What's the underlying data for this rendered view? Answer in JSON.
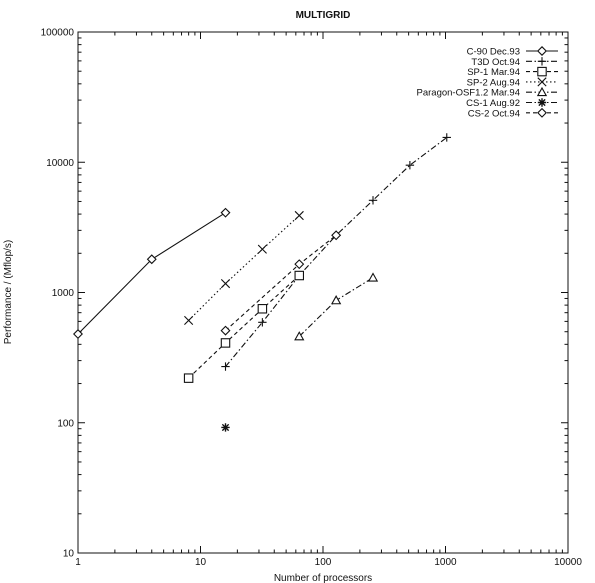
{
  "chart_data": {
    "type": "line",
    "title": "MULTIGRID",
    "xlabel": "Number of processors",
    "ylabel": "Performance / (Mflop/s)",
    "x_scale": "log",
    "y_scale": "log",
    "xlim": [
      1,
      10000
    ],
    "ylim": [
      10,
      100000
    ],
    "x_ticks": [
      "1",
      "10",
      "100",
      "1000",
      "10000"
    ],
    "y_ticks": [
      "10",
      "100",
      "1000",
      "10000",
      "100000"
    ],
    "grid": false,
    "legend_position": "top-right",
    "series": [
      {
        "name": "C-90 Dec.93",
        "marker": "diamond",
        "dash": "solid",
        "x": [
          1,
          4,
          16
        ],
        "y": [
          480,
          1800,
          4100
        ]
      },
      {
        "name": "T3D Oct.94",
        "marker": "plus",
        "dash": "dashdot",
        "x": [
          16,
          32,
          64,
          128,
          256,
          512,
          1024
        ],
        "y": [
          270,
          590,
          1350,
          2750,
          5100,
          9500,
          15500
        ]
      },
      {
        "name": "SP-1 Mar.94",
        "marker": "square",
        "dash": "dashed",
        "x": [
          8,
          16,
          32,
          64
        ],
        "y": [
          220,
          410,
          750,
          1350
        ]
      },
      {
        "name": "SP-2 Aug.94",
        "marker": "x",
        "dash": "dotted",
        "x": [
          8,
          16,
          32,
          64
        ],
        "y": [
          610,
          1170,
          2150,
          3900
        ]
      },
      {
        "name": "Paragon-OSF1.2 Mar.94",
        "marker": "triangle",
        "dash": "dashdot",
        "x": [
          64,
          128,
          256
        ],
        "y": [
          460,
          870,
          1300
        ]
      },
      {
        "name": "CS-1 Aug.92",
        "marker": "asterisk",
        "dash": "dashdot",
        "x": [
          16
        ],
        "y": [
          92
        ]
      },
      {
        "name": "CS-2 Oct.94",
        "marker": "diamond",
        "dash": "dashed",
        "x": [
          16,
          64,
          128
        ],
        "y": [
          510,
          1650,
          2750
        ]
      }
    ]
  }
}
